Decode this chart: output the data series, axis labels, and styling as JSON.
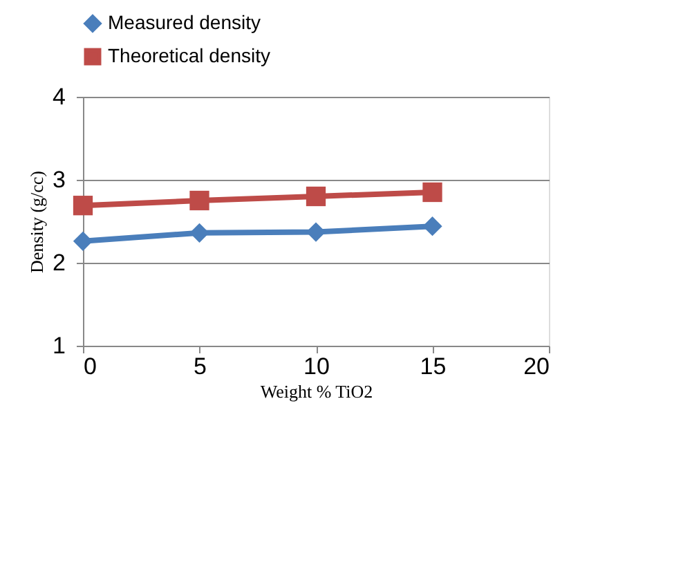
{
  "chart_data": {
    "type": "line",
    "xlabel": "Weight % TiO2",
    "ylabel": "Density (g/cc)",
    "x": [
      0,
      5,
      10,
      15
    ],
    "series": [
      {
        "name": "Measured density",
        "color": "#4a7ebb",
        "marker": "diamond",
        "values": [
          2.26,
          2.36,
          2.37,
          2.44
        ]
      },
      {
        "name": "Theoretical density",
        "color": "#be4b48",
        "marker": "square",
        "values": [
          2.69,
          2.75,
          2.8,
          2.85
        ]
      }
    ],
    "xlim": [
      0,
      20
    ],
    "xticks": [
      0,
      5,
      10,
      15,
      20
    ],
    "ylim": [
      1,
      4
    ],
    "yticks": [
      1,
      2,
      3,
      4
    ],
    "grid": "y",
    "legend": "top",
    "line_style": "solid"
  }
}
